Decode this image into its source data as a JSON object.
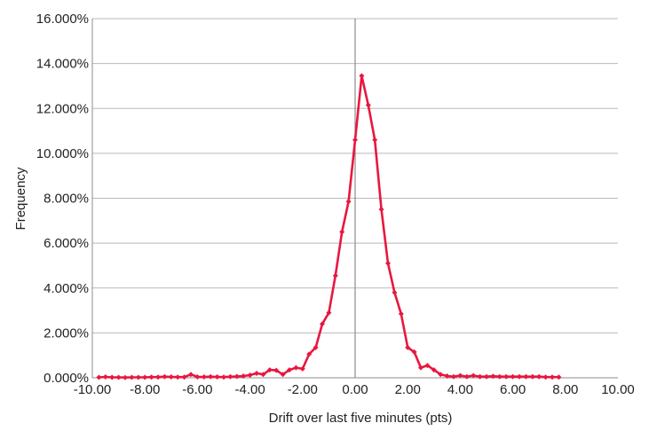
{
  "chart_data": {
    "type": "line",
    "title": "",
    "xlabel": "Drift over last five minutes (pts)",
    "ylabel": "Frequency",
    "xlim": [
      -10,
      10
    ],
    "ylim": [
      0,
      16
    ],
    "x_ticks": [
      "-10.00",
      "-8.00",
      "-6.00",
      "-4.00",
      "-2.00",
      "0.00",
      "2.00",
      "4.00",
      "6.00",
      "8.00",
      "10.00"
    ],
    "y_ticks": [
      "0.000%",
      "2.000%",
      "4.000%",
      "6.000%",
      "8.000%",
      "10.000%",
      "12.000%",
      "14.000%",
      "16.000%"
    ],
    "grid": true,
    "series_color": "#e8173f",
    "series": [
      {
        "x": [
          -9.75,
          -9.5,
          -9.25,
          -9.0,
          -8.75,
          -8.5,
          -8.25,
          -8.0,
          -7.75,
          -7.5,
          -7.25,
          -7.0,
          -6.75,
          -6.5,
          -6.25,
          -6.0,
          -5.75,
          -5.5,
          -5.25,
          -5.0,
          -4.75,
          -4.5,
          -4.25,
          -4.0,
          -3.75,
          -3.5,
          -3.25,
          -3.0,
          -2.75,
          -2.5,
          -2.25,
          -2.0,
          -1.75,
          -1.5,
          -1.25,
          -1.0,
          -0.75,
          -0.5,
          -0.25,
          0.0,
          0.25,
          0.5,
          0.75,
          1.0,
          1.25,
          1.5,
          1.75,
          2.0,
          2.25,
          2.5,
          2.75,
          3.0,
          3.25,
          3.5,
          3.75,
          4.0,
          4.25,
          4.5,
          4.75,
          5.0,
          5.25,
          5.5,
          5.75,
          6.0,
          6.25,
          6.5,
          6.75,
          7.0,
          7.25,
          7.5,
          7.75
        ],
        "values": [
          0.02,
          0.04,
          0.02,
          0.02,
          0.01,
          0.02,
          0.02,
          0.02,
          0.03,
          0.03,
          0.05,
          0.04,
          0.03,
          0.03,
          0.15,
          0.04,
          0.04,
          0.05,
          0.04,
          0.03,
          0.05,
          0.06,
          0.08,
          0.12,
          0.2,
          0.15,
          0.35,
          0.33,
          0.15,
          0.35,
          0.45,
          0.4,
          1.05,
          1.35,
          2.4,
          2.9,
          4.55,
          6.5,
          7.85,
          10.6,
          13.45,
          12.15,
          10.6,
          7.5,
          5.1,
          3.8,
          2.85,
          1.35,
          1.15,
          0.45,
          0.55,
          0.35,
          0.15,
          0.08,
          0.05,
          0.1,
          0.05,
          0.1,
          0.05,
          0.05,
          0.07,
          0.05,
          0.05,
          0.05,
          0.05,
          0.05,
          0.05,
          0.05,
          0.03,
          0.03,
          0.03
        ]
      }
    ]
  }
}
